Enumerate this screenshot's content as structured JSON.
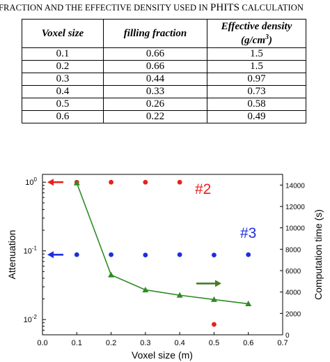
{
  "caption": {
    "prefix": "FRACTION AND THE EFFECTIVE DENSITY USED IN ",
    "phits": "PHITS",
    "suffix": " CALCULATION"
  },
  "table": {
    "headers": [
      "Voxel size",
      "filling fraction",
      "Effective density",
      "(g/cm",
      "3",
      ")"
    ],
    "rows": [
      [
        "0.1",
        "0.66",
        "1.5"
      ],
      [
        "0.2",
        "0.66",
        "1.5"
      ],
      [
        "0.3",
        "0.44",
        "0.97"
      ],
      [
        "0.4",
        "0.33",
        "0.73"
      ],
      [
        "0.5",
        "0.26",
        "0.58"
      ],
      [
        "0.6",
        "0.22",
        "0.49"
      ]
    ]
  },
  "chart_data": {
    "type": "scatter",
    "xlabel": "Voxel size (m)",
    "ylabel": "Attenuation",
    "ylabel_right": "Computation time (s)",
    "xlim": [
      0.0,
      0.7
    ],
    "xticks": [
      "0.0",
      "0.1",
      "0.2",
      "0.3",
      "0.4",
      "0.5",
      "0.6",
      "0.7"
    ],
    "ylim_log": [
      0.006,
      1.3
    ],
    "yticks": [
      {
        "base": "10",
        "exp": "0",
        "value": 1
      },
      {
        "base": "10",
        "exp": "-1",
        "value": 0.1
      },
      {
        "base": "10",
        "exp": "-2",
        "value": 0.01
      }
    ],
    "ylim_right": [
      0,
      15000
    ],
    "yticks_right": [
      "0",
      "2000",
      "4000",
      "6000",
      "8000",
      "10000",
      "12000",
      "14000"
    ],
    "annotations": [
      "#2",
      "#3"
    ],
    "series": [
      {
        "color": "#e8201e",
        "x": [
          0.1,
          0.2,
          0.3,
          0.4,
          0.5
        ],
        "y": [
          1.0,
          1.0,
          1.0,
          1.0,
          0.0085
        ],
        "axis": "left",
        "marker": "circle"
      },
      {
        "color": "#1e2ee0",
        "x": [
          0.1,
          0.2,
          0.3,
          0.4,
          0.5,
          0.6
        ],
        "y": [
          0.088,
          0.088,
          0.087,
          0.088,
          0.087,
          0.088
        ],
        "axis": "left",
        "marker": "circle"
      },
      {
        "color": "#2e8b24",
        "x": [
          0.1,
          0.2,
          0.3,
          0.4,
          0.5,
          0.6
        ],
        "y": [
          14200,
          5600,
          4200,
          3700,
          3300,
          2900
        ],
        "axis": "right",
        "marker": "triangle"
      }
    ],
    "arrows": [
      {
        "color": "#e8201e",
        "direction": "left",
        "axis": "left-side",
        "target": "red"
      },
      {
        "color": "#1e2ee0",
        "direction": "left",
        "axis": "left-side",
        "target": "blue"
      },
      {
        "color": "#4a7a2a",
        "direction": "right",
        "axis": "right-side",
        "target": "green"
      }
    ],
    "colors": {
      "red": "#e8201e",
      "blue": "#1e2ee0",
      "green": "#2e8b24",
      "label2": "#e8201e",
      "label3": "#1e2ee0"
    }
  }
}
